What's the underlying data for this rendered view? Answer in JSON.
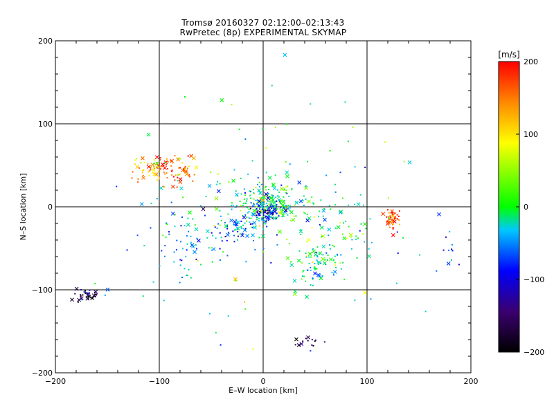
{
  "colors": {
    "axis": "#000000",
    "background": "#ffffff"
  },
  "chart_data": [
    {
      "type": "scatter",
      "title": "Tromsø 20160327 02:12:00–02:13:43",
      "subtitle": "RwPretec (8p) EXPERIMENTAL SKYMAP",
      "xlabel": "E–W location [km]",
      "ylabel": "N–S location [km]",
      "xlim": [
        -200,
        200
      ],
      "ylim": [
        -200,
        200
      ],
      "xticks": [
        "−200",
        "−100",
        "0",
        "100",
        "200"
      ],
      "yticks": [
        "−200",
        "−100",
        "0",
        "100",
        "200"
      ],
      "grid": true,
      "marker_note": "dots and x markers, colour = velocity",
      "clusters": [
        {
          "cx": -90,
          "cy": 45,
          "sx": 15,
          "sy": 8,
          "n": 90,
          "v": 150
        },
        {
          "cx": -110,
          "cy": 45,
          "sx": 8,
          "sy": 6,
          "n": 30,
          "v": 120
        },
        {
          "cx": 5,
          "cy": 5,
          "sx": 14,
          "sy": 12,
          "n": 220,
          "v": 10
        },
        {
          "cx": 0,
          "cy": -5,
          "sx": 8,
          "sy": 6,
          "n": 60,
          "v": -100
        },
        {
          "cx": -20,
          "cy": -25,
          "sx": 12,
          "sy": 8,
          "n": 50,
          "v": -40
        },
        {
          "cx": 50,
          "cy": -70,
          "sx": 10,
          "sy": 12,
          "n": 60,
          "v": 0
        },
        {
          "cx": 125,
          "cy": -15,
          "sx": 4,
          "sy": 7,
          "n": 45,
          "v": 170
        },
        {
          "cx": -170,
          "cy": -107,
          "sx": 7,
          "sy": 4,
          "n": 40,
          "v": -160
        },
        {
          "cx": -65,
          "cy": -40,
          "sx": 25,
          "sy": 20,
          "n": 90,
          "v": -50
        },
        {
          "cx": 60,
          "cy": -30,
          "sx": 25,
          "sy": 25,
          "n": 80,
          "v": 0
        },
        {
          "cx": 0,
          "cy": 0,
          "sx": 80,
          "sy": 70,
          "n": 140,
          "v": 0
        },
        {
          "cx": 45,
          "cy": -160,
          "sx": 8,
          "sy": 4,
          "n": 15,
          "v": -170
        },
        {
          "cx": 180,
          "cy": -55,
          "sx": 8,
          "sy": 15,
          "n": 10,
          "v": -70
        }
      ]
    },
    {
      "type": "heatmap",
      "colorbar_label": "[m/s]",
      "range": [
        -200,
        200
      ],
      "ticks": [
        "200",
        "100",
        "0",
        "−100",
        "−200"
      ],
      "colors": [
        "#000000",
        "#3b0070",
        "#0000ff",
        "#00c8ff",
        "#00ff00",
        "#ffff00",
        "#ff8800",
        "#ff0000"
      ]
    }
  ]
}
